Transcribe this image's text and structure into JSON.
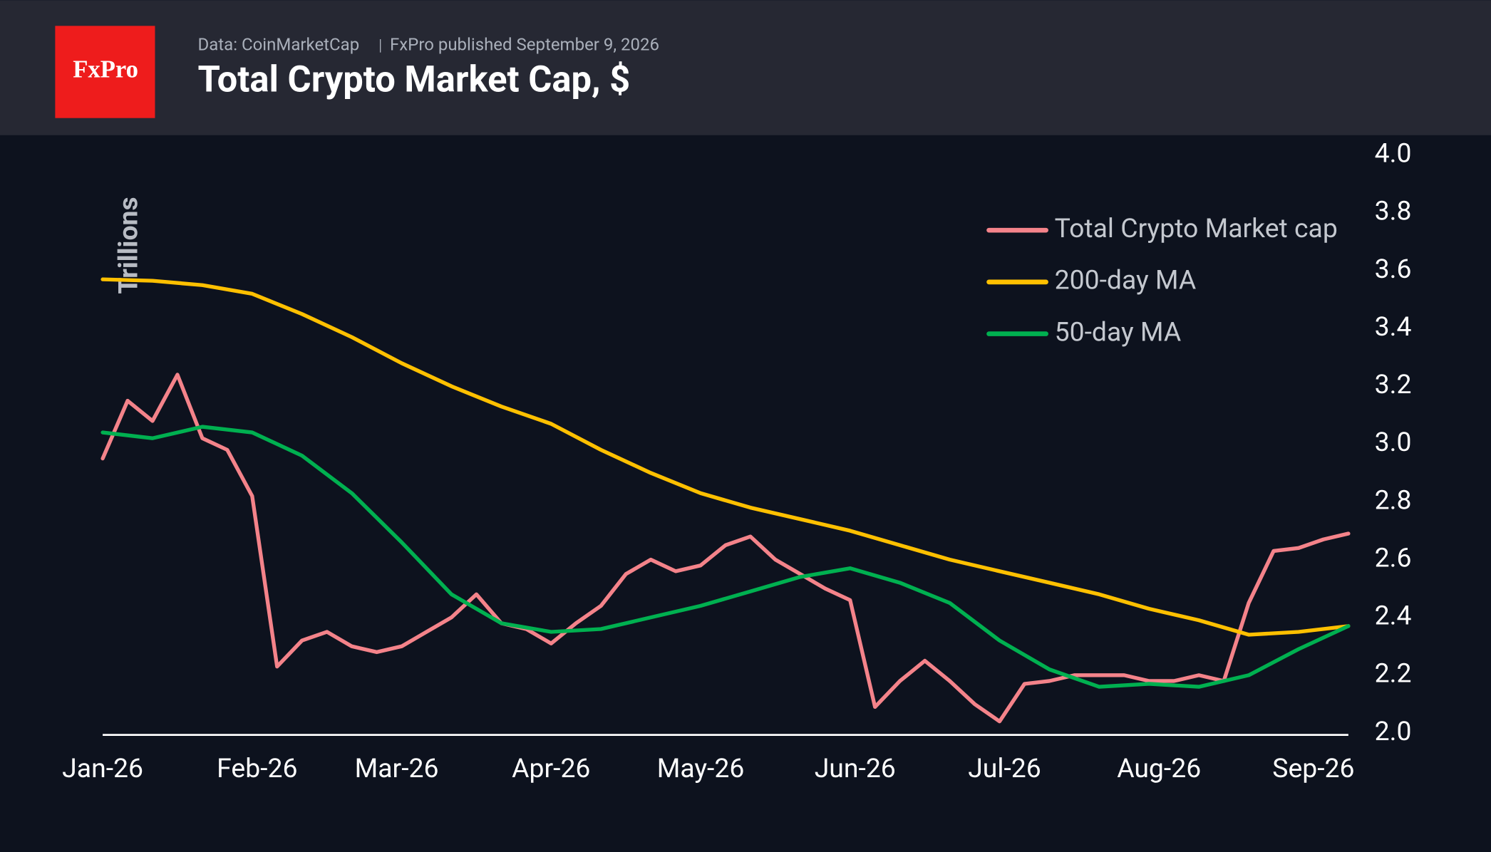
{
  "header": {
    "logo": "FxPro",
    "source": "Data: CoinMarketCap",
    "published": "FxPro published September 9, 2026"
  },
  "chart_data": {
    "type": "line",
    "title": "Total Crypto Market Cap, $",
    "ylabel": "Trillions",
    "xlim": [
      0,
      250
    ],
    "ylim": [
      2.0,
      4.0
    ],
    "xticks": [
      {
        "value": 0,
        "label": "Jan-26"
      },
      {
        "value": 31,
        "label": "Feb-26"
      },
      {
        "value": 59,
        "label": "Mar-26"
      },
      {
        "value": 90,
        "label": "Apr-26"
      },
      {
        "value": 120,
        "label": "May-26"
      },
      {
        "value": 151,
        "label": "Jun-26"
      },
      {
        "value": 181,
        "label": "Jul-26"
      },
      {
        "value": 212,
        "label": "Aug-26"
      },
      {
        "value": 243,
        "label": "Sep-26"
      }
    ],
    "yticks": [
      {
        "value": 2.0,
        "label": "2.0"
      },
      2.2,
      2.4,
      2.6,
      2.8,
      {
        "value": 3.0,
        "label": "3.0"
      },
      3.2,
      3.4,
      3.6,
      3.8,
      {
        "value": 4.0,
        "label": "4.0"
      }
    ],
    "legend": "top-right",
    "series": [
      {
        "name": "Total Crypto Market cap",
        "color": "#f4838a",
        "x": [
          0,
          5,
          10,
          15,
          20,
          25,
          30,
          35,
          40,
          45,
          50,
          55,
          60,
          65,
          70,
          75,
          80,
          85,
          90,
          95,
          100,
          105,
          110,
          115,
          120,
          125,
          130,
          135,
          140,
          145,
          150,
          155,
          160,
          165,
          170,
          175,
          180,
          185,
          190,
          195,
          200,
          205,
          210,
          215,
          220,
          225,
          230,
          235,
          240,
          245,
          250
        ],
        "values": [
          2.95,
          3.15,
          3.08,
          3.24,
          3.02,
          2.98,
          2.82,
          2.23,
          2.32,
          2.35,
          2.3,
          2.28,
          2.3,
          2.35,
          2.4,
          2.48,
          2.38,
          2.36,
          2.31,
          2.38,
          2.44,
          2.55,
          2.6,
          2.56,
          2.58,
          2.65,
          2.68,
          2.6,
          2.55,
          2.5,
          2.46,
          2.09,
          2.18,
          2.25,
          2.18,
          2.1,
          2.04,
          2.17,
          2.18,
          2.2,
          2.2,
          2.2,
          2.18,
          2.18,
          2.2,
          2.18,
          2.45,
          2.63,
          2.64,
          2.67,
          2.69
        ]
      },
      {
        "name": "200-day MA",
        "color": "#ffc000",
        "x": [
          0,
          10,
          20,
          30,
          40,
          50,
          60,
          70,
          80,
          90,
          100,
          110,
          120,
          130,
          140,
          150,
          160,
          170,
          180,
          190,
          200,
          210,
          220,
          230,
          240,
          250
        ],
        "values": [
          3.57,
          3.565,
          3.55,
          3.52,
          3.45,
          3.37,
          3.28,
          3.2,
          3.13,
          3.07,
          2.98,
          2.9,
          2.83,
          2.78,
          2.74,
          2.7,
          2.65,
          2.6,
          2.56,
          2.52,
          2.48,
          2.43,
          2.39,
          2.34,
          2.35,
          2.37
        ]
      },
      {
        "name": "50-day MA",
        "color": "#00b050",
        "x": [
          0,
          10,
          20,
          30,
          40,
          50,
          60,
          70,
          80,
          90,
          100,
          110,
          120,
          130,
          140,
          150,
          160,
          170,
          180,
          190,
          200,
          210,
          220,
          230,
          240,
          250
        ],
        "values": [
          3.04,
          3.02,
          3.06,
          3.04,
          2.96,
          2.83,
          2.66,
          2.48,
          2.38,
          2.35,
          2.36,
          2.4,
          2.44,
          2.49,
          2.54,
          2.57,
          2.52,
          2.45,
          2.32,
          2.22,
          2.16,
          2.17,
          2.16,
          2.2,
          2.29,
          2.37
        ]
      }
    ]
  }
}
